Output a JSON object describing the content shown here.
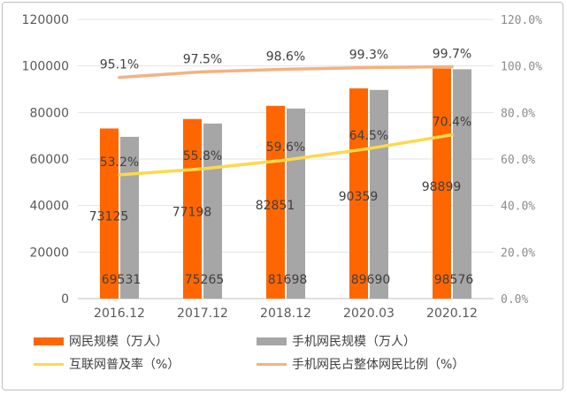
{
  "chart_data": {
    "type": "bar",
    "categories": [
      "2016.12",
      "2017.12",
      "2018.12",
      "2020.03",
      "2020.12"
    ],
    "series": [
      {
        "name": "网民规模（万人）",
        "type": "bar",
        "axis": "left",
        "color": "#ff6600",
        "values": [
          73125,
          77198,
          82851,
          90359,
          98899
        ],
        "labels": [
          "73125",
          "77198",
          "82851",
          "90359",
          "98899"
        ]
      },
      {
        "name": "手机网民规模（万人）",
        "type": "bar",
        "axis": "left",
        "color": "#a6a6a6",
        "values": [
          69531,
          75265,
          81698,
          89690,
          98576
        ],
        "labels": [
          "69531",
          "75265",
          "81698",
          "89690",
          "98576"
        ]
      },
      {
        "name": "互联网普及率（%）",
        "type": "line",
        "axis": "right",
        "color": "#ffd84d",
        "values": [
          53.2,
          55.8,
          59.6,
          64.5,
          70.4
        ],
        "labels": [
          "53.2%",
          "55.8%",
          "59.6%",
          "64.5%",
          "70.4%"
        ]
      },
      {
        "name": "手机网民占整体网民比例（%）",
        "type": "line",
        "axis": "right",
        "color": "#f4b183",
        "values": [
          95.1,
          97.5,
          98.6,
          99.3,
          99.7
        ],
        "labels": [
          "95.1%",
          "97.5%",
          "98.6%",
          "99.3%",
          "99.7%"
        ]
      }
    ],
    "y_left": {
      "min": 0,
      "max": 120000,
      "ticks": [
        "0",
        "20000",
        "40000",
        "60000",
        "80000",
        "100000",
        "120000"
      ]
    },
    "y_right": {
      "min": 0,
      "max": 120,
      "ticks": [
        "0.0%",
        "20.0%",
        "40.0%",
        "60.0%",
        "80.0%",
        "100.0%",
        "120.0%"
      ]
    },
    "grid": true,
    "legend_position": "bottom"
  }
}
